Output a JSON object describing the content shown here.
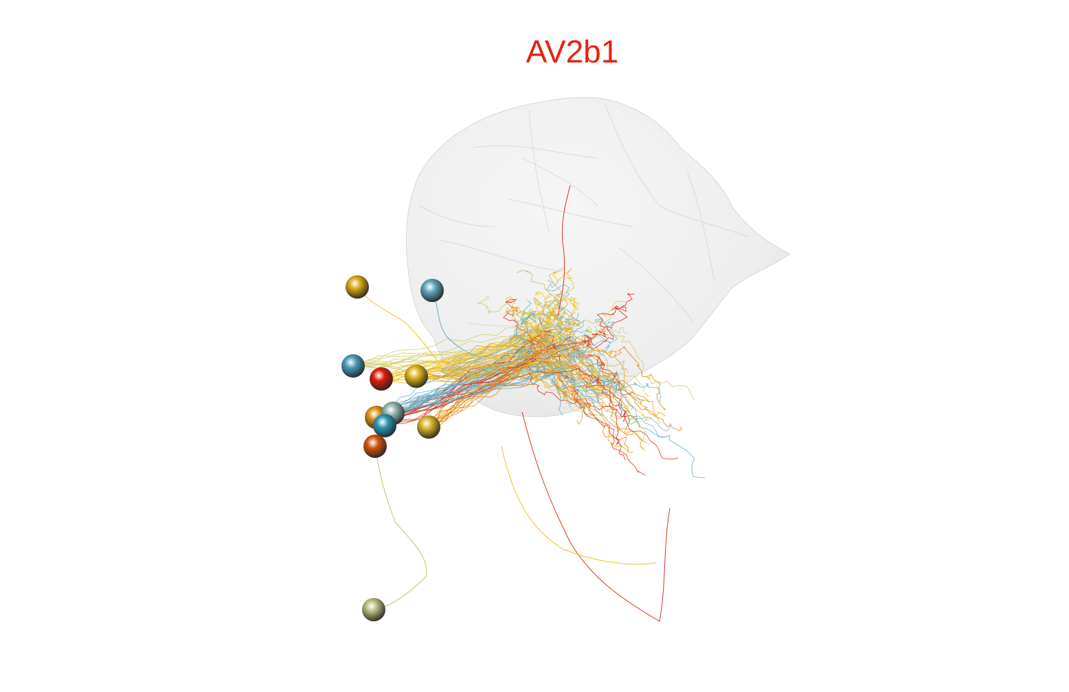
{
  "title": "AV2b1",
  "title_color": "#e8200e",
  "neuropil": {
    "name": "neuropil-mesh",
    "fill": "#e6e6e6"
  },
  "soma_colors": [
    "#d4a615",
    "#5fa3b8",
    "#4a98b8",
    "#e01a0a",
    "#d9b21c",
    "#d89012",
    "#8fb0a8",
    "#2d95b5",
    "#d4b026",
    "#d0540c",
    "#b5ba7a"
  ],
  "fiber_colors": [
    "#f0c419",
    "#e8a317",
    "#e0301a",
    "#5fb0cc",
    "#78b8c8",
    "#e88a10",
    "#d6cc6a",
    "#c8b870"
  ]
}
